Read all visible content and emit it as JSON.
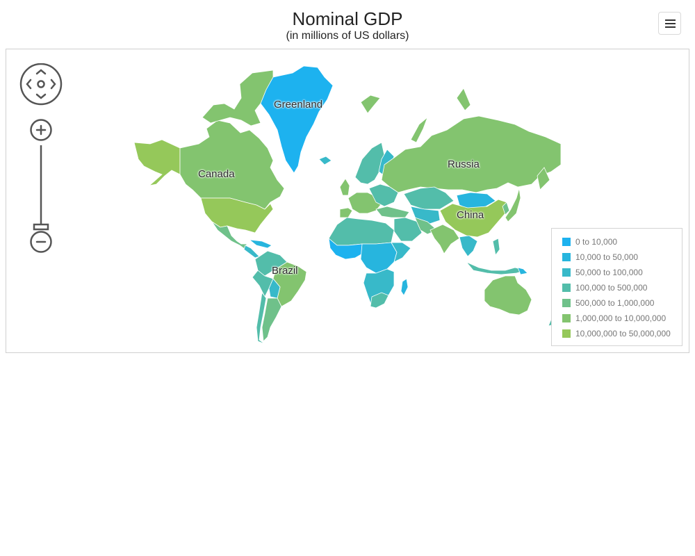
{
  "header": {
    "title": "Nominal GDP",
    "subtitle": "(in millions of US dollars)"
  },
  "toolbar": {
    "menu_icon": "hamburger-menu-icon"
  },
  "controls": {
    "pan_icon": "pan-arrows-icon",
    "zoom_in_icon": "plus-icon",
    "zoom_out_icon": "minus-icon"
  },
  "labels": {
    "greenland": "Greenland",
    "canada": "Canada",
    "russia": "Russia",
    "china": "China",
    "brazil": "Brazil"
  },
  "legend": {
    "items": [
      {
        "label": "0 to 10,000",
        "color": "#1db2ef"
      },
      {
        "label": "10,000 to 50,000",
        "color": "#27b5de"
      },
      {
        "label": "50,000 to 100,000",
        "color": "#38b9c9"
      },
      {
        "label": "100,000 to 500,000",
        "color": "#53bdaa"
      },
      {
        "label": "500,000 to 1,000,000",
        "color": "#6fc18a"
      },
      {
        "label": "1,000,000 to 10,000,000",
        "color": "#83c46f"
      },
      {
        "label": "10,000,000 to 50,000,000",
        "color": "#95c85a"
      }
    ]
  }
}
